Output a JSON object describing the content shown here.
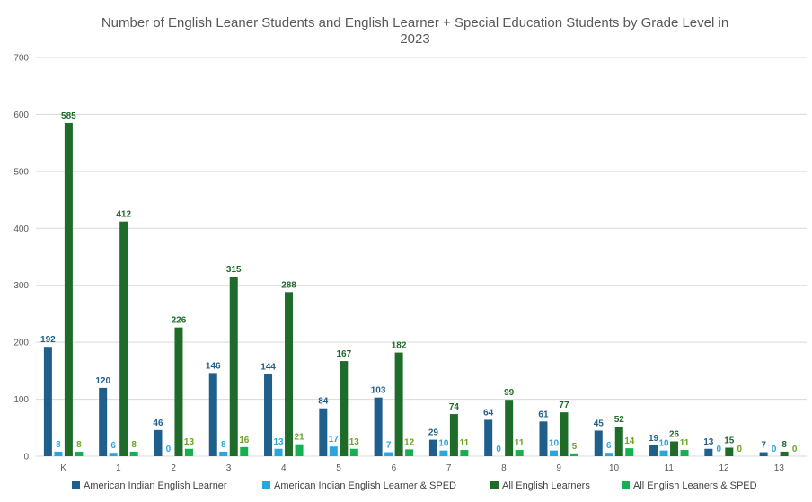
{
  "chart_data": {
    "type": "bar",
    "title": "Number of English Leaner Students and English Learner + Special Education Students by Grade Level in 2023",
    "title_lines": [
      "Number of English Leaner Students and English Learner + Special Education Students by Grade Level in",
      "2023"
    ],
    "xlabel": "",
    "ylabel": "",
    "ylim": [
      0,
      700
    ],
    "yticks": [
      0,
      100,
      200,
      300,
      400,
      500,
      600,
      700
    ],
    "grid": true,
    "legend_position": "bottom",
    "categories": [
      "K",
      "1",
      "2",
      "3",
      "4",
      "5",
      "6",
      "7",
      "8",
      "9",
      "10",
      "11",
      "12",
      "13"
    ],
    "series": [
      {
        "name": "American Indian English Learner",
        "color": "#1f5f8b",
        "label_color": "#1f5f8b",
        "values": [
          192,
          120,
          46,
          146,
          144,
          84,
          103,
          29,
          64,
          61,
          45,
          19,
          13,
          7
        ]
      },
      {
        "name": "American Indian English Learner & SPED",
        "color": "#29a6de",
        "label_color": "#29a6de",
        "values": [
          8,
          6,
          0,
          8,
          13,
          17,
          7,
          10,
          0,
          10,
          6,
          10,
          0,
          0
        ]
      },
      {
        "name": "All English Learners",
        "color": "#1e6b2a",
        "label_color": "#1e6b2a",
        "values": [
          585,
          412,
          226,
          315,
          288,
          167,
          182,
          74,
          99,
          77,
          52,
          26,
          15,
          8
        ]
      },
      {
        "name": "All English Leaners & SPED",
        "color": "#16b050",
        "label_color": "#6aa51f",
        "values": [
          8,
          8,
          13,
          16,
          21,
          13,
          12,
          11,
          11,
          5,
          14,
          11,
          0,
          0
        ]
      }
    ]
  }
}
